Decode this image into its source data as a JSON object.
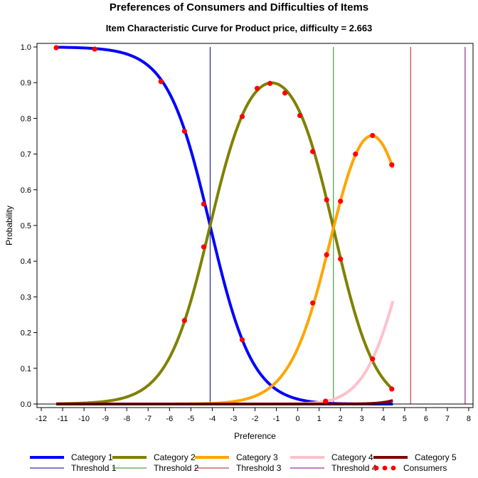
{
  "chart_data": {
    "type": "line",
    "title": "Preferences of Consumers and Difficulties of Items",
    "subtitle": "Item Characteristic Curve for Product price, difficulty = 2.663",
    "xlabel": "Preference",
    "ylabel": "Probability",
    "xlim": [
      -12.2,
      8.2
    ],
    "ylim": [
      -0.01,
      1.01
    ],
    "xticks": [
      "-12",
      "-11",
      "-10",
      "-9",
      "-8",
      "-7",
      "-6",
      "-5",
      "-4",
      "-3",
      "-2",
      "-1",
      "0",
      "1",
      "2",
      "3",
      "4",
      "5",
      "6",
      "7",
      "8"
    ],
    "yticks": [
      "0.0",
      "0.1",
      "0.2",
      "0.3",
      "0.4",
      "0.5",
      "0.6",
      "0.7",
      "0.8",
      "0.9",
      "1.0"
    ],
    "grid": false,
    "legend_position": "bottom",
    "thresholds": [
      -4.1,
      1.67,
      5.28,
      7.83
    ],
    "x_range": [
      -11.3,
      4.45
    ],
    "series": [
      {
        "name": "Category 1",
        "color": "#0000ff",
        "width": 4,
        "category": 1
      },
      {
        "name": "Category 2",
        "color": "#808000",
        "width": 4,
        "category": 2
      },
      {
        "name": "Category 3",
        "color": "#ffa500",
        "width": 4,
        "category": 3
      },
      {
        "name": "Category 4",
        "color": "#ffc0cb",
        "width": 4,
        "category": 4
      },
      {
        "name": "Category 5",
        "color": "#800000",
        "width": 4,
        "category": 5
      },
      {
        "name": "Threshold 1",
        "color": "#00008b",
        "width": 1
      },
      {
        "name": "Threshold 2",
        "color": "#228b22",
        "width": 1
      },
      {
        "name": "Threshold 3",
        "color": "#b22222",
        "width": 1
      },
      {
        "name": "Threshold 4",
        "color": "#800080",
        "width": 1
      },
      {
        "name": "Consumers",
        "color": "#ff0000",
        "marker": "circle"
      }
    ],
    "consumers": [
      {
        "x": -11.3,
        "y": 0.998
      },
      {
        "x": -9.5,
        "y": 0.994
      },
      {
        "x": -6.4,
        "y": 0.903
      },
      {
        "x": -5.3,
        "y": 0.764
      },
      {
        "x": -4.4,
        "y": 0.56
      },
      {
        "x": -4.4,
        "y": 0.44
      },
      {
        "x": -5.3,
        "y": 0.234
      },
      {
        "x": -2.6,
        "y": 0.805
      },
      {
        "x": -1.9,
        "y": 0.884
      },
      {
        "x": -1.3,
        "y": 0.898
      },
      {
        "x": -0.6,
        "y": 0.871
      },
      {
        "x": 0.1,
        "y": 0.808
      },
      {
        "x": 0.7,
        "y": 0.707
      },
      {
        "x": 1.35,
        "y": 0.572
      },
      {
        "x": 1.35,
        "y": 0.418
      },
      {
        "x": 2.0,
        "y": 0.406
      },
      {
        "x": -2.6,
        "y": 0.18
      },
      {
        "x": 0.7,
        "y": 0.283
      },
      {
        "x": 2.0,
        "y": 0.568
      },
      {
        "x": 2.7,
        "y": 0.7
      },
      {
        "x": 3.5,
        "y": 0.752
      },
      {
        "x": 4.4,
        "y": 0.67
      },
      {
        "x": 3.5,
        "y": 0.126
      },
      {
        "x": 4.4,
        "y": 0.042
      },
      {
        "x": 1.3,
        "y": 0.008
      }
    ]
  }
}
